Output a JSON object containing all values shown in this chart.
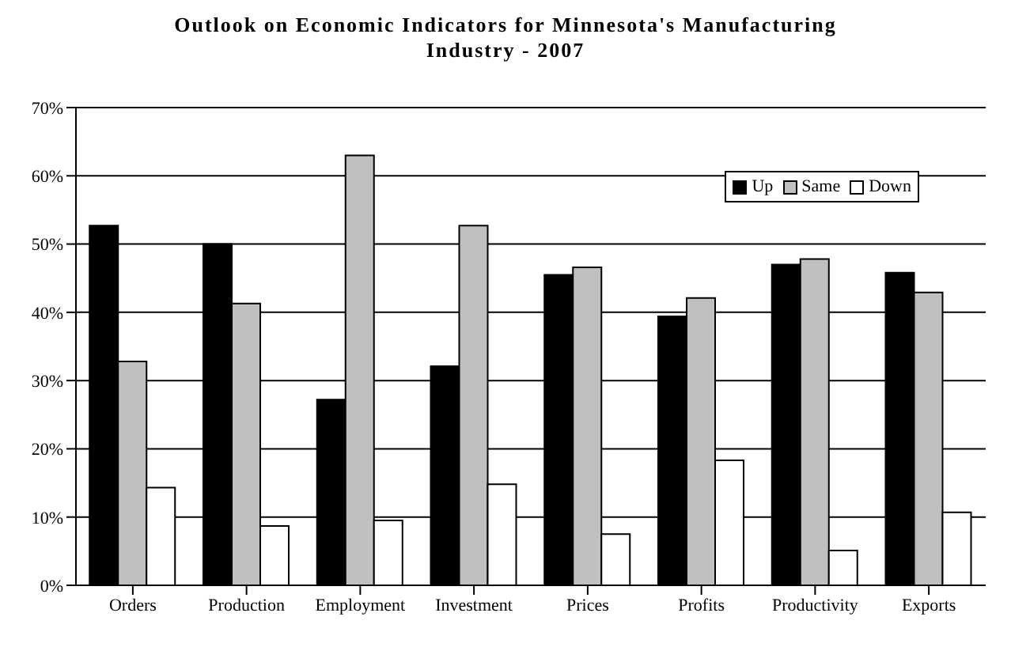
{
  "chart_data": {
    "type": "bar",
    "title": "Outlook on Economic Indicators for Minnesota's Manufacturing Industry - 2007",
    "categories": [
      "Orders",
      "Production",
      "Employment",
      "Investment",
      "Prices",
      "Profits",
      "Productivity",
      "Exports"
    ],
    "series": [
      {
        "name": "Up",
        "color": "#000000",
        "values": [
          52.7,
          50,
          27.2,
          32.1,
          45.5,
          39.4,
          47,
          45.8
        ]
      },
      {
        "name": "Same",
        "color": "#c0c0c0",
        "values": [
          32.8,
          41.3,
          63,
          52.7,
          46.6,
          42.1,
          47.8,
          42.9
        ]
      },
      {
        "name": "Down",
        "color": "#ffffff",
        "values": [
          14.3,
          8.7,
          9.5,
          14.8,
          7.5,
          18.3,
          5.1,
          10.7
        ]
      }
    ],
    "ylim": [
      0,
      70
    ],
    "yticks": [
      {
        "value": 0,
        "label": "0%"
      },
      {
        "value": 10,
        "label": "10%"
      },
      {
        "value": 20,
        "label": "20%"
      },
      {
        "value": 30,
        "label": "30%"
      },
      {
        "value": 40,
        "label": "40%"
      },
      {
        "value": 50,
        "label": "50%"
      },
      {
        "value": 60,
        "label": "60%"
      },
      {
        "value": 70,
        "label": "70%"
      }
    ],
    "grid": "y",
    "legend": "top right"
  }
}
